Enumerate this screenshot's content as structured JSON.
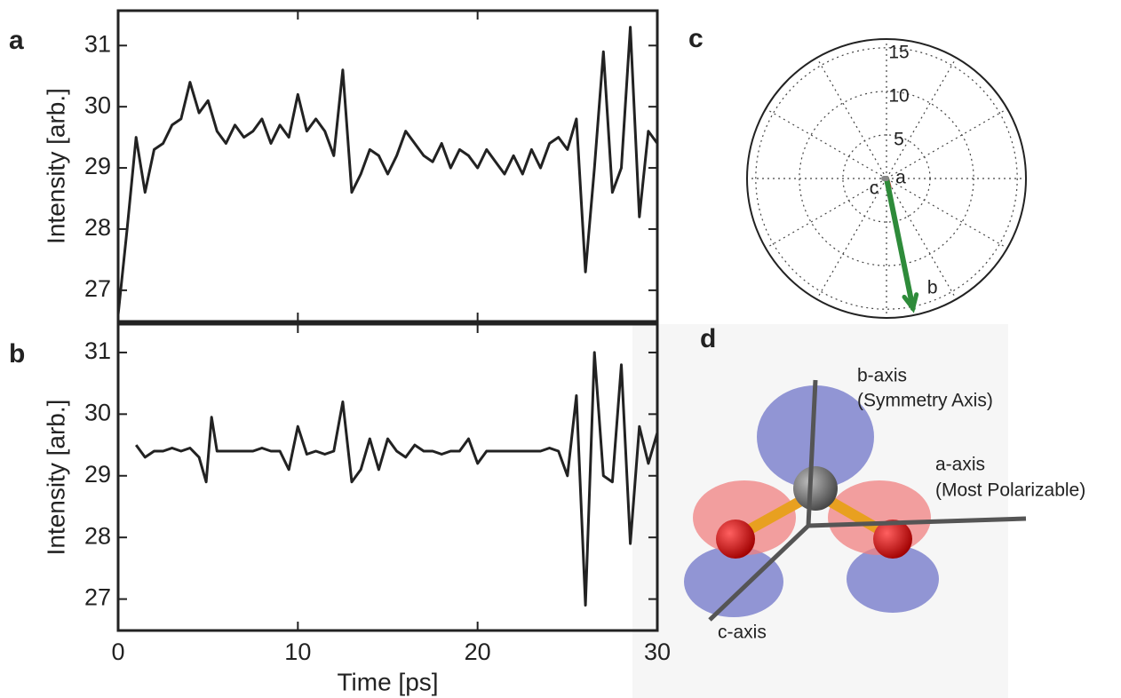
{
  "chart_data": [
    {
      "type": "line",
      "panel": "a",
      "ylabel": "Intensity [arb.]",
      "color": "#222222",
      "x": [
        0,
        0.5,
        1,
        1.5,
        2,
        2.5,
        3,
        3.5,
        4,
        4.5,
        5,
        5.5,
        6,
        6.5,
        7,
        7.5,
        8,
        8.5,
        9,
        9.5,
        10,
        10.5,
        11,
        11.5,
        12,
        12.5,
        13,
        13.5,
        14,
        14.5,
        15,
        15.5,
        16,
        16.5,
        17,
        17.5,
        18,
        18.5,
        19,
        19.5,
        20,
        20.5,
        21,
        21.5,
        22,
        22.5,
        23,
        23.5,
        24,
        24.5,
        25,
        25.5,
        26,
        26.5,
        27,
        27.5,
        28,
        28.5,
        29,
        29.5,
        30
      ],
      "values": [
        26.6,
        28.0,
        29.5,
        28.6,
        29.3,
        29.4,
        29.7,
        29.8,
        30.4,
        29.9,
        30.1,
        29.6,
        29.4,
        29.7,
        29.5,
        29.6,
        29.8,
        29.4,
        29.7,
        29.5,
        30.2,
        29.6,
        29.8,
        29.6,
        29.2,
        30.6,
        28.6,
        28.9,
        29.3,
        29.2,
        28.9,
        29.2,
        29.6,
        29.4,
        29.2,
        29.1,
        29.4,
        29.0,
        29.3,
        29.2,
        29.0,
        29.3,
        29.1,
        28.9,
        29.2,
        28.9,
        29.3,
        29.0,
        29.4,
        29.5,
        29.3,
        29.8,
        27.3,
        29.0,
        30.9,
        28.6,
        29.0,
        31.3,
        28.2,
        29.6,
        29.4
      ],
      "xlim": [
        0,
        30
      ],
      "xticks": [
        0,
        10,
        20,
        30
      ],
      "show_xtick_labels": false,
      "ylim": [
        26.49,
        31.57
      ],
      "yticks": [
        27,
        28,
        29,
        30,
        31
      ]
    },
    {
      "type": "line",
      "panel": "b",
      "ylabel": "Intensity [arb.]",
      "xlabel": "Time [ps]",
      "color": "#222222",
      "x": [
        1,
        1.5,
        2,
        2.5,
        3,
        3.5,
        4,
        4.5,
        4.9,
        5.2,
        5.5,
        6,
        6.5,
        7,
        7.5,
        8,
        8.5,
        9,
        9.5,
        10,
        10.5,
        11,
        11.5,
        12,
        12.5,
        13,
        13.5,
        14,
        14.5,
        15,
        15.5,
        16,
        16.5,
        17,
        17.5,
        18,
        18.5,
        19,
        19.5,
        20,
        20.5,
        21,
        21.5,
        22,
        22.5,
        23,
        23.5,
        24,
        24.5,
        25,
        25.5,
        26,
        26.5,
        27,
        27.5,
        28,
        28.5,
        29,
        29.5,
        30
      ],
      "values": [
        29.5,
        29.3,
        29.4,
        29.4,
        29.45,
        29.4,
        29.45,
        29.3,
        28.9,
        29.95,
        29.4,
        29.4,
        29.4,
        29.4,
        29.4,
        29.45,
        29.4,
        29.4,
        29.1,
        29.8,
        29.35,
        29.4,
        29.35,
        29.4,
        30.2,
        28.9,
        29.1,
        29.6,
        29.1,
        29.6,
        29.4,
        29.3,
        29.5,
        29.4,
        29.4,
        29.35,
        29.4,
        29.4,
        29.6,
        29.2,
        29.4,
        29.4,
        29.4,
        29.4,
        29.4,
        29.4,
        29.4,
        29.45,
        29.4,
        29.0,
        30.3,
        26.9,
        31.0,
        29.0,
        28.9,
        30.8,
        27.9,
        29.8,
        29.2,
        29.7
      ],
      "xlim": [
        0,
        30
      ],
      "xticks": [
        0,
        10,
        20,
        30
      ],
      "show_xtick_labels": true,
      "ylim": [
        26.49,
        31.46
      ],
      "yticks": [
        27,
        28,
        29,
        30,
        31
      ]
    },
    {
      "type": "polar",
      "panel": "c",
      "rlim": [
        0,
        16
      ],
      "rticks": [
        5,
        10,
        15
      ],
      "vectors": [
        {
          "name": "a",
          "color": "#e02020",
          "r": 1.0,
          "theta": 285
        },
        {
          "name": "b",
          "color": "#2e8b3a",
          "r": 15.2,
          "theta": 281.5
        },
        {
          "name": "c",
          "color": "#888888",
          "r": 0.3,
          "theta": 180
        }
      ]
    }
  ],
  "diagram": {
    "panel": "d",
    "labels": [
      "b-axis",
      "(Symmetry Axis)",
      "a-axis",
      "(Most Polarizable)",
      "c-axis"
    ]
  }
}
